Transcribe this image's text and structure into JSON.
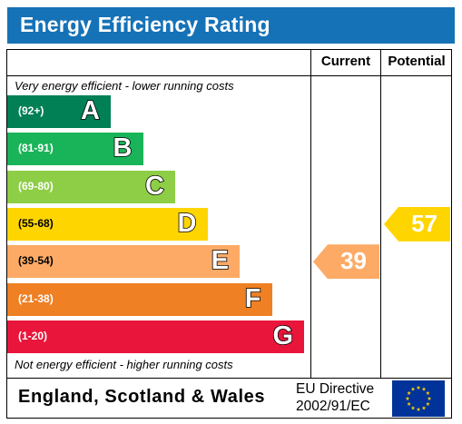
{
  "title": "Energy Efficiency Rating",
  "columns": {
    "current": "Current",
    "potential": "Potential"
  },
  "top_note": "Very energy efficient - lower running costs",
  "bottom_note": "Not energy efficient - higher running costs",
  "footer": {
    "region": "England, Scotland & Wales",
    "directive_line1": "EU Directive",
    "directive_line2": "2002/91/EC",
    "flag_icon": "eu-flag-icon"
  },
  "chart_data": {
    "type": "bar",
    "categories": [
      "A",
      "B",
      "C",
      "D",
      "E",
      "F",
      "G"
    ],
    "bands": [
      {
        "letter": "A",
        "range": "(92+)",
        "color": "#008054"
      },
      {
        "letter": "B",
        "range": "(81-91)",
        "color": "#19b459"
      },
      {
        "letter": "C",
        "range": "(69-80)",
        "color": "#8dce46"
      },
      {
        "letter": "D",
        "range": "(55-68)",
        "color": "#ffd500"
      },
      {
        "letter": "E",
        "range": "(39-54)",
        "color": "#fcaa65"
      },
      {
        "letter": "F",
        "range": "(21-38)",
        "color": "#ef8023"
      },
      {
        "letter": "G",
        "range": "(1-20)",
        "color": "#e9153b"
      }
    ],
    "current": {
      "value": 39,
      "band": "E",
      "color": "#fcaa65"
    },
    "potential": {
      "value": 57,
      "band": "D",
      "color": "#ffd500"
    }
  }
}
